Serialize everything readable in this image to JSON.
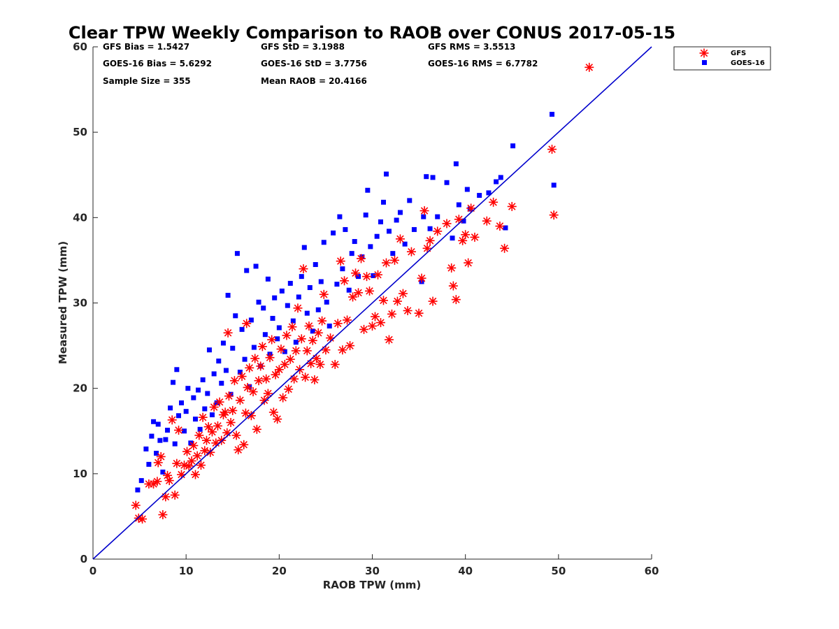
{
  "chart_data": {
    "type": "scatter",
    "title": "Clear TPW Weekly Comparison to RAOB over CONUS 2017-05-15",
    "xlabel": "RAOB TPW (mm)",
    "ylabel": "Measured TPW (mm)",
    "xlim": [
      0,
      60
    ],
    "ylim": [
      0,
      60
    ],
    "xticks": [
      "0",
      "10",
      "20",
      "30",
      "40",
      "50",
      "60"
    ],
    "yticks": [
      "0",
      "10",
      "20",
      "30",
      "40",
      "50",
      "60"
    ],
    "grid": false,
    "legend_position": "top-right outside",
    "stats": [
      [
        "GFS Bias = 1.5427",
        "GFS StD = 3.1988",
        "GFS RMS = 3.5513"
      ],
      [
        "GOES-16 Bias = 5.6292",
        "GOES-16 StD = 3.7756",
        "GOES-16 RMS = 6.7782"
      ],
      [
        "Sample Size = 355",
        "Mean RAOB = 20.4166",
        ""
      ]
    ],
    "reference_line": {
      "label": "1:1 line",
      "from": [
        0,
        0
      ],
      "to": [
        60,
        60
      ],
      "color": "#0000cc"
    },
    "series": [
      {
        "name": "GFS",
        "marker": "asterisk",
        "color": "#ff0000",
        "points": [
          [
            4.6,
            6.3
          ],
          [
            4.9,
            4.8
          ],
          [
            5.3,
            4.7
          ],
          [
            6.0,
            8.8
          ],
          [
            6.5,
            8.8
          ],
          [
            6.9,
            9.1
          ],
          [
            7.0,
            11.3
          ],
          [
            7.3,
            12.0
          ],
          [
            7.5,
            5.2
          ],
          [
            7.8,
            7.3
          ],
          [
            8.0,
            9.8
          ],
          [
            8.2,
            9.2
          ],
          [
            8.5,
            16.3
          ],
          [
            8.8,
            7.5
          ],
          [
            9.0,
            11.2
          ],
          [
            9.2,
            15.1
          ],
          [
            9.5,
            9.9
          ],
          [
            9.8,
            11.0
          ],
          [
            10.1,
            12.6
          ],
          [
            10.3,
            10.9
          ],
          [
            10.6,
            11.5
          ],
          [
            10.8,
            13.3
          ],
          [
            11.0,
            9.9
          ],
          [
            11.2,
            12.1
          ],
          [
            11.4,
            14.5
          ],
          [
            11.6,
            11.0
          ],
          [
            11.8,
            16.6
          ],
          [
            12.0,
            12.7
          ],
          [
            12.2,
            13.9
          ],
          [
            12.4,
            15.5
          ],
          [
            12.6,
            12.5
          ],
          [
            12.8,
            14.9
          ],
          [
            13.0,
            17.8
          ],
          [
            13.2,
            13.6
          ],
          [
            13.4,
            15.6
          ],
          [
            13.6,
            18.4
          ],
          [
            13.8,
            13.9
          ],
          [
            14.0,
            16.9
          ],
          [
            14.2,
            17.2
          ],
          [
            14.4,
            14.8
          ],
          [
            14.6,
            19.1
          ],
          [
            14.5,
            26.5
          ],
          [
            14.8,
            16.0
          ],
          [
            15.0,
            17.4
          ],
          [
            15.2,
            20.9
          ],
          [
            15.4,
            14.5
          ],
          [
            15.6,
            12.8
          ],
          [
            15.8,
            18.6
          ],
          [
            16.0,
            21.4
          ],
          [
            16.2,
            13.4
          ],
          [
            16.4,
            17.1
          ],
          [
            16.6,
            20.1
          ],
          [
            16.5,
            27.6
          ],
          [
            16.8,
            22.4
          ],
          [
            17.0,
            16.8
          ],
          [
            17.2,
            19.6
          ],
          [
            17.4,
            23.5
          ],
          [
            17.6,
            15.2
          ],
          [
            17.8,
            20.9
          ],
          [
            18.0,
            22.6
          ],
          [
            18.2,
            24.9
          ],
          [
            18.4,
            18.6
          ],
          [
            18.6,
            21.1
          ],
          [
            18.8,
            19.4
          ],
          [
            19.0,
            23.6
          ],
          [
            19.2,
            25.7
          ],
          [
            19.4,
            17.2
          ],
          [
            19.6,
            21.6
          ],
          [
            19.8,
            16.4
          ],
          [
            20.0,
            22.2
          ],
          [
            20.2,
            24.6
          ],
          [
            20.4,
            18.9
          ],
          [
            20.6,
            22.8
          ],
          [
            20.8,
            26.2
          ],
          [
            21.0,
            19.9
          ],
          [
            21.2,
            23.4
          ],
          [
            21.4,
            27.2
          ],
          [
            21.6,
            21.1
          ],
          [
            21.8,
            24.4
          ],
          [
            22.0,
            29.4
          ],
          [
            22.2,
            22.2
          ],
          [
            22.4,
            25.8
          ],
          [
            22.6,
            34.0
          ],
          [
            22.8,
            21.3
          ],
          [
            23.0,
            24.4
          ],
          [
            23.2,
            27.3
          ],
          [
            23.4,
            22.9
          ],
          [
            23.6,
            25.6
          ],
          [
            23.8,
            21.0
          ],
          [
            24.0,
            23.5
          ],
          [
            24.2,
            26.5
          ],
          [
            24.4,
            22.8
          ],
          [
            24.6,
            27.9
          ],
          [
            24.8,
            31.0
          ],
          [
            25.0,
            24.5
          ],
          [
            25.5,
            25.9
          ],
          [
            26.0,
            22.8
          ],
          [
            26.3,
            27.6
          ],
          [
            26.6,
            34.9
          ],
          [
            26.8,
            24.5
          ],
          [
            27.0,
            32.6
          ],
          [
            27.3,
            28.0
          ],
          [
            27.6,
            25.0
          ],
          [
            27.9,
            30.7
          ],
          [
            28.2,
            33.5
          ],
          [
            28.5,
            31.2
          ],
          [
            28.8,
            35.2
          ],
          [
            29.1,
            26.9
          ],
          [
            29.4,
            33.1
          ],
          [
            29.7,
            31.4
          ],
          [
            30.0,
            27.3
          ],
          [
            30.3,
            28.4
          ],
          [
            30.6,
            33.3
          ],
          [
            30.9,
            27.7
          ],
          [
            31.2,
            30.3
          ],
          [
            31.5,
            34.7
          ],
          [
            31.8,
            25.7
          ],
          [
            32.1,
            28.7
          ],
          [
            32.4,
            35.0
          ],
          [
            32.7,
            30.2
          ],
          [
            33.0,
            37.5
          ],
          [
            33.3,
            31.1
          ],
          [
            33.8,
            29.1
          ],
          [
            34.2,
            36.0
          ],
          [
            35.0,
            28.8
          ],
          [
            35.3,
            32.9
          ],
          [
            35.6,
            40.8
          ],
          [
            35.9,
            36.4
          ],
          [
            36.2,
            37.3
          ],
          [
            36.5,
            30.2
          ],
          [
            37.0,
            38.4
          ],
          [
            38.0,
            39.3
          ],
          [
            38.5,
            34.1
          ],
          [
            38.7,
            32.0
          ],
          [
            39.0,
            30.4
          ],
          [
            39.3,
            39.8
          ],
          [
            39.7,
            37.3
          ],
          [
            40.0,
            38.0
          ],
          [
            40.3,
            34.7
          ],
          [
            40.6,
            41.1
          ],
          [
            41.0,
            37.7
          ],
          [
            42.3,
            39.6
          ],
          [
            43.0,
            41.8
          ],
          [
            43.7,
            39.0
          ],
          [
            44.2,
            36.4
          ],
          [
            45.0,
            41.3
          ],
          [
            49.3,
            48.0
          ],
          [
            49.5,
            40.3
          ],
          [
            53.3,
            57.6
          ]
        ]
      },
      {
        "name": "GOES-16",
        "marker": "square",
        "color": "#0000ff",
        "points": [
          [
            4.8,
            8.1
          ],
          [
            5.2,
            9.2
          ],
          [
            5.7,
            12.9
          ],
          [
            6.0,
            11.1
          ],
          [
            6.3,
            14.4
          ],
          [
            6.5,
            16.1
          ],
          [
            6.8,
            12.4
          ],
          [
            7.0,
            15.8
          ],
          [
            7.2,
            13.9
          ],
          [
            7.5,
            10.2
          ],
          [
            7.8,
            14.0
          ],
          [
            8.0,
            15.1
          ],
          [
            8.3,
            17.7
          ],
          [
            8.6,
            20.7
          ],
          [
            8.8,
            13.5
          ],
          [
            9.0,
            22.2
          ],
          [
            9.2,
            16.8
          ],
          [
            9.5,
            18.3
          ],
          [
            9.8,
            15.0
          ],
          [
            10.0,
            17.3
          ],
          [
            10.2,
            20.0
          ],
          [
            10.5,
            13.6
          ],
          [
            10.8,
            18.9
          ],
          [
            11.0,
            16.4
          ],
          [
            11.3,
            19.8
          ],
          [
            11.5,
            15.2
          ],
          [
            11.8,
            21.0
          ],
          [
            12.0,
            17.6
          ],
          [
            12.3,
            19.4
          ],
          [
            12.5,
            24.5
          ],
          [
            12.8,
            16.9
          ],
          [
            13.0,
            21.7
          ],
          [
            13.3,
            18.3
          ],
          [
            13.5,
            23.2
          ],
          [
            13.8,
            20.6
          ],
          [
            14.0,
            25.3
          ],
          [
            14.3,
            22.1
          ],
          [
            14.5,
            30.9
          ],
          [
            14.8,
            19.3
          ],
          [
            15.0,
            24.7
          ],
          [
            15.3,
            28.5
          ],
          [
            15.5,
            35.8
          ],
          [
            15.8,
            21.9
          ],
          [
            16.0,
            26.9
          ],
          [
            16.3,
            23.4
          ],
          [
            16.5,
            33.8
          ],
          [
            16.8,
            20.2
          ],
          [
            17.0,
            28.0
          ],
          [
            17.3,
            24.8
          ],
          [
            17.5,
            34.3
          ],
          [
            17.8,
            30.1
          ],
          [
            18.0,
            22.6
          ],
          [
            18.3,
            29.4
          ],
          [
            18.5,
            26.3
          ],
          [
            18.8,
            32.8
          ],
          [
            19.0,
            24.0
          ],
          [
            19.3,
            28.2
          ],
          [
            19.5,
            30.6
          ],
          [
            19.8,
            25.8
          ],
          [
            20.0,
            27.1
          ],
          [
            20.3,
            31.4
          ],
          [
            20.6,
            24.3
          ],
          [
            20.9,
            29.7
          ],
          [
            21.2,
            32.3
          ],
          [
            21.5,
            27.9
          ],
          [
            21.8,
            25.4
          ],
          [
            22.1,
            30.7
          ],
          [
            22.4,
            33.1
          ],
          [
            22.7,
            36.5
          ],
          [
            23.0,
            28.8
          ],
          [
            23.3,
            31.8
          ],
          [
            23.6,
            26.7
          ],
          [
            23.9,
            34.5
          ],
          [
            24.2,
            29.2
          ],
          [
            24.5,
            32.5
          ],
          [
            24.8,
            37.1
          ],
          [
            25.1,
            30.1
          ],
          [
            25.4,
            27.3
          ],
          [
            25.8,
            38.2
          ],
          [
            26.2,
            32.2
          ],
          [
            26.5,
            40.1
          ],
          [
            26.8,
            34.0
          ],
          [
            27.1,
            38.6
          ],
          [
            27.5,
            31.5
          ],
          [
            27.8,
            35.8
          ],
          [
            28.1,
            37.2
          ],
          [
            28.5,
            33.1
          ],
          [
            28.9,
            35.4
          ],
          [
            29.3,
            40.3
          ],
          [
            29.5,
            43.2
          ],
          [
            29.8,
            36.6
          ],
          [
            30.1,
            33.2
          ],
          [
            30.5,
            37.8
          ],
          [
            30.9,
            39.5
          ],
          [
            31.2,
            41.8
          ],
          [
            31.5,
            45.1
          ],
          [
            31.8,
            38.4
          ],
          [
            32.2,
            35.8
          ],
          [
            32.6,
            39.7
          ],
          [
            33.0,
            40.6
          ],
          [
            33.5,
            36.9
          ],
          [
            34.0,
            42.0
          ],
          [
            34.5,
            38.6
          ],
          [
            35.3,
            32.5
          ],
          [
            35.5,
            40.1
          ],
          [
            35.8,
            44.8
          ],
          [
            36.2,
            38.7
          ],
          [
            36.5,
            44.7
          ],
          [
            37.0,
            40.1
          ],
          [
            38.0,
            44.1
          ],
          [
            38.6,
            37.6
          ],
          [
            39.0,
            46.3
          ],
          [
            39.3,
            41.5
          ],
          [
            39.8,
            39.6
          ],
          [
            40.2,
            43.3
          ],
          [
            40.5,
            41.0
          ],
          [
            41.5,
            42.6
          ],
          [
            42.5,
            42.9
          ],
          [
            43.3,
            44.2
          ],
          [
            43.8,
            44.7
          ],
          [
            44.3,
            38.8
          ],
          [
            45.1,
            48.4
          ],
          [
            49.3,
            52.1
          ],
          [
            49.5,
            43.8
          ]
        ]
      }
    ]
  }
}
